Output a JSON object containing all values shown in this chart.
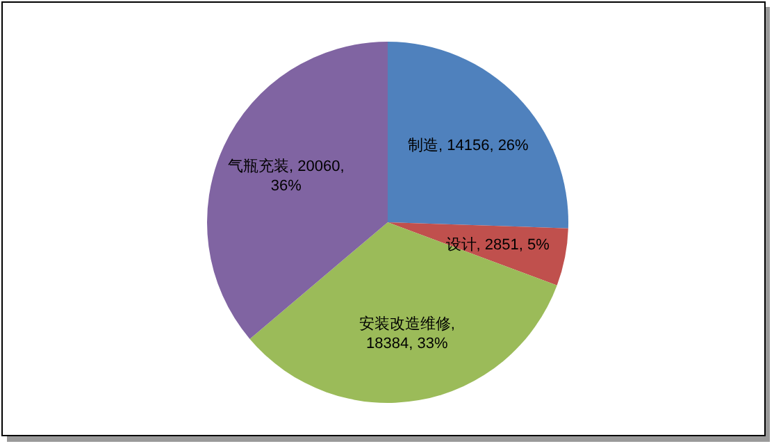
{
  "chart_data": {
    "type": "pie",
    "categories": [
      "制造",
      "设计",
      "安装改造维修",
      "气瓶充装"
    ],
    "values": [
      14156,
      2851,
      18384,
      20060
    ],
    "colors": [
      "#4f81bd",
      "#c0504d",
      "#9bbb59",
      "#8064a2"
    ],
    "value_labels": [
      ", 14156, 26%",
      ", 2851, 5%",
      ", 18384, 33%",
      ", 20060, 36%"
    ]
  }
}
